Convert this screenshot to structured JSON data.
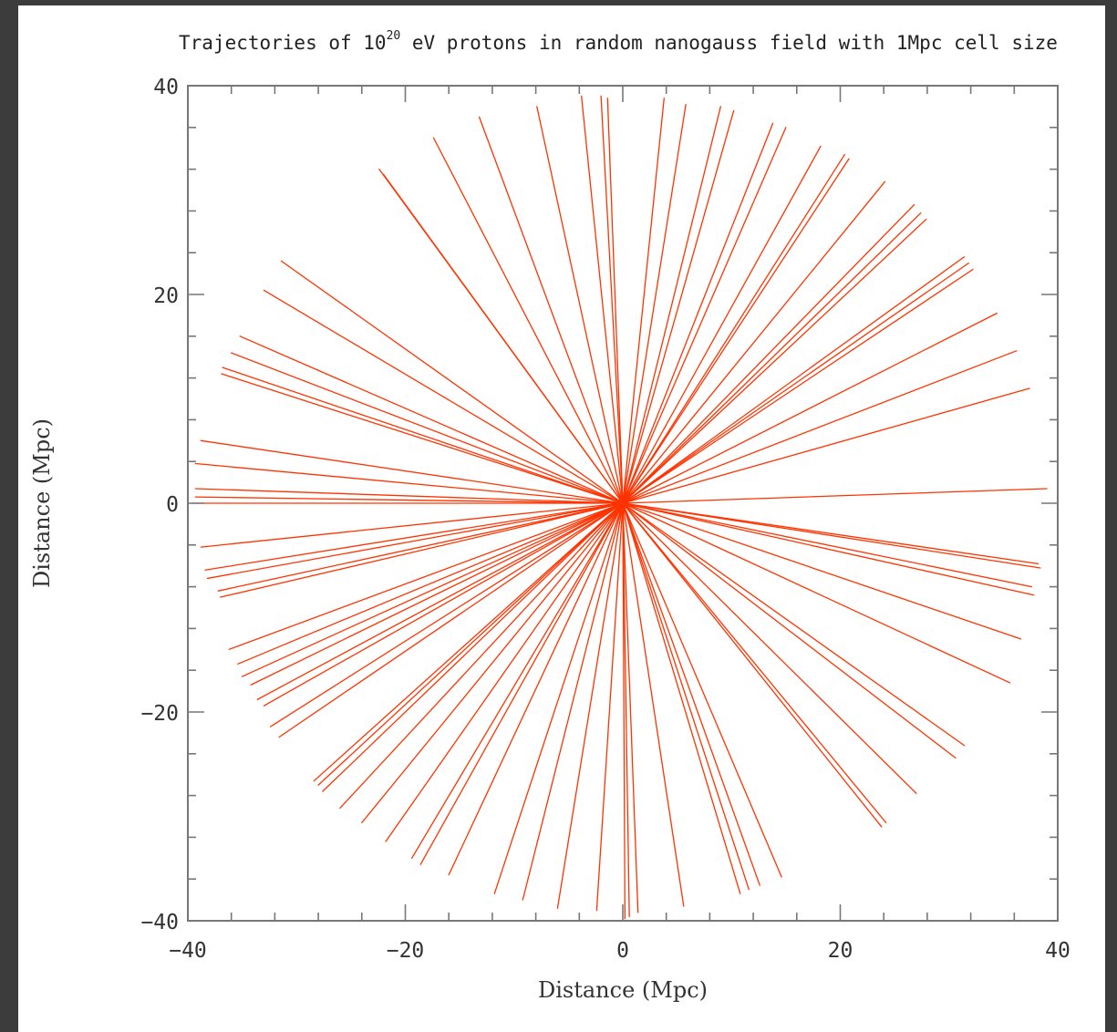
{
  "chart_data": {
    "type": "line",
    "title": "Trajectories of 10",
    "title_superscript": "20",
    "title_rest": " eV protons in random nanogauss field with 1Mpc cell size",
    "xlabel": "Distance (Mpc)",
    "ylabel": "Distance (Mpc)",
    "xlim": [
      -40,
      40
    ],
    "ylim": [
      -40,
      40
    ],
    "x_ticks": [
      -40,
      -20,
      0,
      20,
      40
    ],
    "y_ticks": [
      -40,
      -20,
      0,
      20,
      40
    ],
    "x_tick_labels": [
      "−40",
      "−20",
      "0",
      "20",
      "40"
    ],
    "y_tick_labels": [
      "−40",
      "−20",
      "0",
      "20",
      "40"
    ],
    "minor_tick_step": 4,
    "grid": false,
    "line_color": "#ff3300",
    "origin": [
      0,
      0
    ],
    "series": [
      {
        "x": [
          3.8,
          0
        ],
        "y": [
          38.8,
          0
        ]
      },
      {
        "x": [
          5.8,
          0
        ],
        "y": [
          38.2,
          0
        ]
      },
      {
        "x": [
          -2.0,
          0
        ],
        "y": [
          39.0,
          0
        ]
      },
      {
        "x": [
          -1.4,
          0
        ],
        "y": [
          38.8,
          0
        ]
      },
      {
        "x": [
          -3.8,
          0
        ],
        "y": [
          39.0,
          0
        ]
      },
      {
        "x": [
          -7.9,
          0
        ],
        "y": [
          38.0,
          0
        ]
      },
      {
        "x": [
          -13.2,
          0
        ],
        "y": [
          37.0,
          0
        ]
      },
      {
        "x": [
          -17.4,
          0
        ],
        "y": [
          35.0,
          0
        ]
      },
      {
        "x": [
          -22.4,
          0
        ],
        "y": [
          32.0,
          0
        ]
      },
      {
        "x": [
          -22.0,
          0
        ],
        "y": [
          31.5,
          0
        ]
      },
      {
        "x": [
          9.0,
          0
        ],
        "y": [
          38.0,
          0
        ]
      },
      {
        "x": [
          10.2,
          0
        ],
        "y": [
          37.6,
          0
        ]
      },
      {
        "x": [
          13.8,
          0
        ],
        "y": [
          36.4,
          0
        ]
      },
      {
        "x": [
          15.0,
          0
        ],
        "y": [
          36.0,
          0
        ]
      },
      {
        "x": [
          18.2,
          0
        ],
        "y": [
          34.2,
          0
        ]
      },
      {
        "x": [
          20.4,
          0
        ],
        "y": [
          33.4,
          0
        ]
      },
      {
        "x": [
          20.8,
          0
        ],
        "y": [
          33.0,
          0
        ]
      },
      {
        "x": [
          24.1,
          0
        ],
        "y": [
          30.8,
          0
        ]
      },
      {
        "x": [
          26.8,
          0
        ],
        "y": [
          28.6,
          0
        ]
      },
      {
        "x": [
          27.4,
          0
        ],
        "y": [
          27.8,
          0
        ]
      },
      {
        "x": [
          27.9,
          0
        ],
        "y": [
          27.2,
          0
        ]
      },
      {
        "x": [
          31.4,
          0
        ],
        "y": [
          23.6,
          0
        ]
      },
      {
        "x": [
          31.8,
          0
        ],
        "y": [
          23.0,
          0
        ]
      },
      {
        "x": [
          32.2,
          0
        ],
        "y": [
          22.4,
          0
        ]
      },
      {
        "x": [
          34.4,
          0
        ],
        "y": [
          18.2,
          0
        ]
      },
      {
        "x": [
          36.2,
          0
        ],
        "y": [
          14.6,
          0
        ]
      },
      {
        "x": [
          37.4,
          0
        ],
        "y": [
          11.0,
          0
        ]
      },
      {
        "x": [
          39.0,
          0
        ],
        "y": [
          1.4,
          0
        ]
      },
      {
        "x": [
          -31.4,
          0
        ],
        "y": [
          23.2,
          0
        ]
      },
      {
        "x": [
          -33.0,
          0
        ],
        "y": [
          20.4,
          0
        ]
      },
      {
        "x": [
          -35.2,
          0
        ],
        "y": [
          16.0,
          0
        ]
      },
      {
        "x": [
          -36.0,
          0
        ],
        "y": [
          14.4,
          0
        ]
      },
      {
        "x": [
          -36.8,
          0
        ],
        "y": [
          13.0,
          0
        ]
      },
      {
        "x": [
          -36.9,
          0
        ],
        "y": [
          12.4,
          0
        ]
      },
      {
        "x": [
          -38.8,
          0
        ],
        "y": [
          6.0,
          0
        ]
      },
      {
        "x": [
          -39.3,
          0
        ],
        "y": [
          3.8,
          0
        ]
      },
      {
        "x": [
          -39.3,
          0
        ],
        "y": [
          1.4,
          0
        ]
      },
      {
        "x": [
          -39.3,
          0
        ],
        "y": [
          0.6,
          0
        ]
      },
      {
        "x": [
          -39.6,
          0
        ],
        "y": [
          0.0,
          0
        ]
      },
      {
        "x": [
          -38.8,
          0
        ],
        "y": [
          -4.2,
          0
        ]
      },
      {
        "x": [
          -38.4,
          0
        ],
        "y": [
          -6.4,
          0
        ]
      },
      {
        "x": [
          -38.2,
          0
        ],
        "y": [
          -7.2,
          0
        ]
      },
      {
        "x": [
          -37.2,
          0
        ],
        "y": [
          -8.4,
          0
        ]
      },
      {
        "x": [
          -37.0,
          0
        ],
        "y": [
          -9.0,
          0
        ]
      },
      {
        "x": [
          -36.2,
          0
        ],
        "y": [
          -14.0,
          0
        ]
      },
      {
        "x": [
          -35.4,
          0
        ],
        "y": [
          -15.4,
          0
        ]
      },
      {
        "x": [
          -35.0,
          0
        ],
        "y": [
          -16.6,
          0
        ]
      },
      {
        "x": [
          -34.2,
          0
        ],
        "y": [
          -17.4,
          0
        ]
      },
      {
        "x": [
          -33.6,
          0
        ],
        "y": [
          -18.8,
          0
        ]
      },
      {
        "x": [
          -33.0,
          0
        ],
        "y": [
          -19.4,
          0
        ]
      },
      {
        "x": [
          -32.4,
          0
        ],
        "y": [
          -21.4,
          0
        ]
      },
      {
        "x": [
          -31.6,
          0
        ],
        "y": [
          -22.4,
          0
        ]
      },
      {
        "x": [
          -28.4,
          0
        ],
        "y": [
          -26.6,
          0
        ]
      },
      {
        "x": [
          -28.0,
          0
        ],
        "y": [
          -27.0,
          0
        ]
      },
      {
        "x": [
          -27.6,
          0
        ],
        "y": [
          -27.6,
          0
        ]
      },
      {
        "x": [
          -26.0,
          0
        ],
        "y": [
          -29.2,
          0
        ]
      },
      {
        "x": [
          -24.0,
          0
        ],
        "y": [
          -30.6,
          0
        ]
      },
      {
        "x": [
          -21.8,
          0
        ],
        "y": [
          -32.4,
          0
        ]
      },
      {
        "x": [
          -19.4,
          0
        ],
        "y": [
          -34.0,
          0
        ]
      },
      {
        "x": [
          -18.6,
          0
        ],
        "y": [
          -34.6,
          0
        ]
      },
      {
        "x": [
          -16.0,
          0
        ],
        "y": [
          -35.6,
          0
        ]
      },
      {
        "x": [
          -11.8,
          0
        ],
        "y": [
          -37.4,
          0
        ]
      },
      {
        "x": [
          -9.2,
          0
        ],
        "y": [
          -38.0,
          0
        ]
      },
      {
        "x": [
          -6.0,
          0
        ],
        "y": [
          -38.8,
          0
        ]
      },
      {
        "x": [
          -2.4,
          0
        ],
        "y": [
          -39.0,
          0
        ]
      },
      {
        "x": [
          0.2,
          0
        ],
        "y": [
          -39.8,
          0
        ]
      },
      {
        "x": [
          0.6,
          0
        ],
        "y": [
          -39.6,
          0
        ]
      },
      {
        "x": [
          1.4,
          0
        ],
        "y": [
          -39.2,
          0
        ]
      },
      {
        "x": [
          5.6,
          0
        ],
        "y": [
          -38.6,
          0
        ]
      },
      {
        "x": [
          10.8,
          0
        ],
        "y": [
          -37.4,
          0
        ]
      },
      {
        "x": [
          11.6,
          0
        ],
        "y": [
          -37.0,
          0
        ]
      },
      {
        "x": [
          12.6,
          0
        ],
        "y": [
          -36.6,
          0
        ]
      },
      {
        "x": [
          14.6,
          0
        ],
        "y": [
          -35.8,
          0
        ]
      },
      {
        "x": [
          23.8,
          0
        ],
        "y": [
          -31.0,
          0
        ]
      },
      {
        "x": [
          24.2,
          0
        ],
        "y": [
          -30.6,
          0
        ]
      },
      {
        "x": [
          27.0,
          0
        ],
        "y": [
          -27.8,
          0
        ]
      },
      {
        "x": [
          30.6,
          0
        ],
        "y": [
          -24.4,
          0
        ]
      },
      {
        "x": [
          31.4,
          0
        ],
        "y": [
          -23.2,
          0
        ]
      },
      {
        "x": [
          35.6,
          0
        ],
        "y": [
          -17.2,
          0
        ]
      },
      {
        "x": [
          36.6,
          0
        ],
        "y": [
          -13.0,
          0
        ]
      },
      {
        "x": [
          37.8,
          0
        ],
        "y": [
          -8.8,
          0
        ]
      },
      {
        "x": [
          37.6,
          0
        ],
        "y": [
          -8.0,
          0
        ]
      },
      {
        "x": [
          38.4,
          0
        ],
        "y": [
          -6.2,
          0
        ]
      },
      {
        "x": [
          38.2,
          0
        ],
        "y": [
          -5.8,
          0
        ]
      }
    ]
  }
}
